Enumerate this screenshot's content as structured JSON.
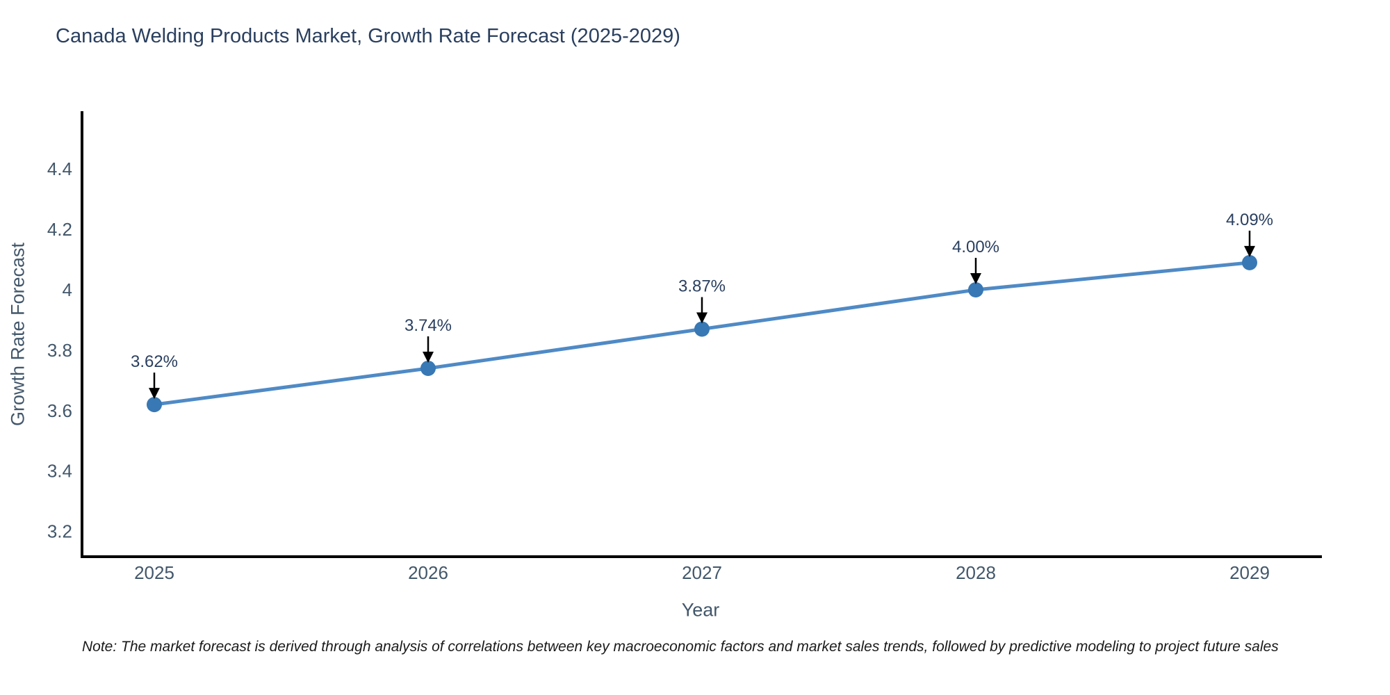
{
  "title": "Canada Welding Products Market, Growth Rate Forecast (2025-2029)",
  "note": "Note: The market forecast is derived through analysis of correlations between key macroeconomic factors and market sales trends, followed by predictive modeling to project future sales",
  "colors": {
    "line": "#4f8ac5",
    "marker": "#3878b4",
    "axis": "#000000",
    "tick_label": "#42576b",
    "title_text": "#2a3f5f",
    "annotation_text": "#2a3f5f",
    "annotation_arrow": "#000000",
    "background": "#ffffff"
  },
  "chart_data": {
    "type": "line",
    "title": "Canada Welding Products Market, Growth Rate Forecast (2025-2029)",
    "xlabel": "Year",
    "ylabel": "Growth Rate Forecast",
    "x": [
      2025,
      2026,
      2027,
      2028,
      2029
    ],
    "values": [
      3.62,
      3.74,
      3.87,
      4.0,
      4.09
    ],
    "point_labels": [
      "3.62%",
      "3.74%",
      "3.87%",
      "4.00%",
      "4.09%"
    ],
    "yticks": [
      3.2,
      3.4,
      3.6,
      3.8,
      4,
      4.2,
      4.4
    ],
    "ylim": [
      3.12,
      4.59
    ],
    "xlim": [
      2024.73,
      2029.26
    ],
    "grid": false,
    "legend": "none",
    "marker": "circle",
    "annotations": "value labels with downward arrows above each point"
  }
}
